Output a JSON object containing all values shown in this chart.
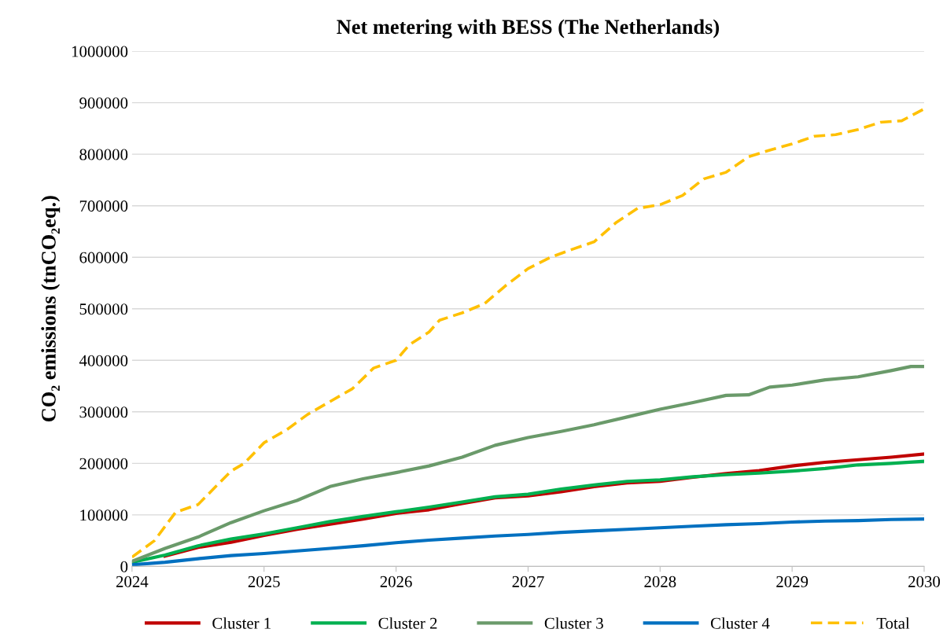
{
  "chart_data": {
    "type": "line",
    "title": "Net metering with BESS (The Netherlands)",
    "ylabel": "CO₂ emissions (tnCO₂eq.)",
    "xlim": [
      2024,
      2030
    ],
    "xticks": [
      2024,
      2025,
      2026,
      2027,
      2028,
      2029,
      2030
    ],
    "ylim": [
      0,
      1000000
    ],
    "yticks": [
      0,
      100000,
      200000,
      300000,
      400000,
      500000,
      600000,
      700000,
      800000,
      900000,
      1000000
    ],
    "grid": "y",
    "legend": "bottom",
    "series": [
      {
        "name": "Cluster 1",
        "color": "#c00000",
        "line_style": "solid",
        "x": [
          2024.25,
          2024.5,
          2024.75,
          2025,
          2025.25,
          2025.5,
          2025.75,
          2026,
          2026.25,
          2026.5,
          2026.75,
          2027,
          2027.25,
          2027.5,
          2027.75,
          2028,
          2028.25,
          2028.5,
          2028.75,
          2029,
          2029.25,
          2029.5,
          2029.75,
          2030
        ],
        "values": [
          20000,
          37000,
          47000,
          60000,
          72000,
          82000,
          92000,
          103000,
          110000,
          122000,
          133000,
          137000,
          145000,
          155000,
          162000,
          165000,
          173000,
          180000,
          186000,
          195000,
          202000,
          207000,
          212000,
          218000
        ]
      },
      {
        "name": "Cluster 2",
        "color": "#00b050",
        "line_style": "solid",
        "x": [
          2024,
          2024.25,
          2024.5,
          2024.75,
          2025,
          2025.25,
          2025.5,
          2025.75,
          2026,
          2026.25,
          2026.5,
          2026.75,
          2027,
          2027.25,
          2027.5,
          2027.75,
          2028,
          2028.25,
          2028.5,
          2028.75,
          2029,
          2029.25,
          2029.5,
          2029.75,
          2030
        ],
        "values": [
          8000,
          22000,
          40000,
          53000,
          63000,
          75000,
          87000,
          97000,
          106000,
          115000,
          125000,
          135000,
          140000,
          150000,
          158000,
          165000,
          168000,
          174000,
          178000,
          181000,
          185000,
          190000,
          197000,
          200000,
          204000
        ]
      },
      {
        "name": "Cluster 3",
        "color": "#6a9a6a",
        "line_style": "solid",
        "x": [
          2024,
          2024.25,
          2024.5,
          2024.75,
          2025,
          2025.25,
          2025.5,
          2025.75,
          2026,
          2026.25,
          2026.5,
          2026.75,
          2027,
          2027.25,
          2027.5,
          2027.75,
          2028,
          2028.25,
          2028.5,
          2028.67,
          2028.83,
          2029,
          2029.25,
          2029.5,
          2029.75,
          2029.9,
          2030
        ],
        "values": [
          10000,
          35000,
          57000,
          85000,
          108000,
          128000,
          155000,
          170000,
          182000,
          195000,
          212000,
          235000,
          250000,
          262000,
          275000,
          290000,
          305000,
          318000,
          332000,
          333000,
          348000,
          352000,
          362000,
          368000,
          380000,
          388000,
          388000
        ]
      },
      {
        "name": "Cluster 4",
        "color": "#0070c0",
        "line_style": "solid",
        "x": [
          2024,
          2024.25,
          2024.5,
          2024.75,
          2025,
          2025.25,
          2025.5,
          2025.75,
          2026,
          2026.25,
          2026.5,
          2026.75,
          2027,
          2027.25,
          2027.5,
          2027.75,
          2028,
          2028.25,
          2028.5,
          2028.75,
          2029,
          2029.25,
          2029.5,
          2029.75,
          2030
        ],
        "values": [
          3000,
          8000,
          15000,
          21000,
          25000,
          30000,
          35000,
          40000,
          46000,
          51000,
          55000,
          59000,
          62000,
          66000,
          69000,
          72000,
          75000,
          78000,
          81000,
          83000,
          86000,
          88000,
          89000,
          91000,
          92000
        ]
      },
      {
        "name": "Total",
        "color": "#ffc000",
        "line_style": "dashed",
        "x": [
          2024,
          2024.17,
          2024.33,
          2024.5,
          2024.75,
          2024.85,
          2025,
          2025.17,
          2025.33,
          2025.5,
          2025.67,
          2025.83,
          2026,
          2026.1,
          2026.25,
          2026.33,
          2026.5,
          2026.67,
          2026.83,
          2027,
          2027.17,
          2027.33,
          2027.5,
          2027.67,
          2027.83,
          2028,
          2028.17,
          2028.33,
          2028.5,
          2028.67,
          2028.83,
          2029,
          2029.17,
          2029.33,
          2029.5,
          2029.67,
          2029.83,
          2030
        ],
        "values": [
          18000,
          50000,
          105000,
          120000,
          185000,
          200000,
          240000,
          265000,
          295000,
          320000,
          345000,
          385000,
          400000,
          430000,
          455000,
          478000,
          492000,
          510000,
          545000,
          578000,
          600000,
          615000,
          630000,
          668000,
          695000,
          702000,
          720000,
          752000,
          765000,
          795000,
          808000,
          820000,
          835000,
          838000,
          848000,
          862000,
          865000,
          888000
        ]
      }
    ]
  }
}
